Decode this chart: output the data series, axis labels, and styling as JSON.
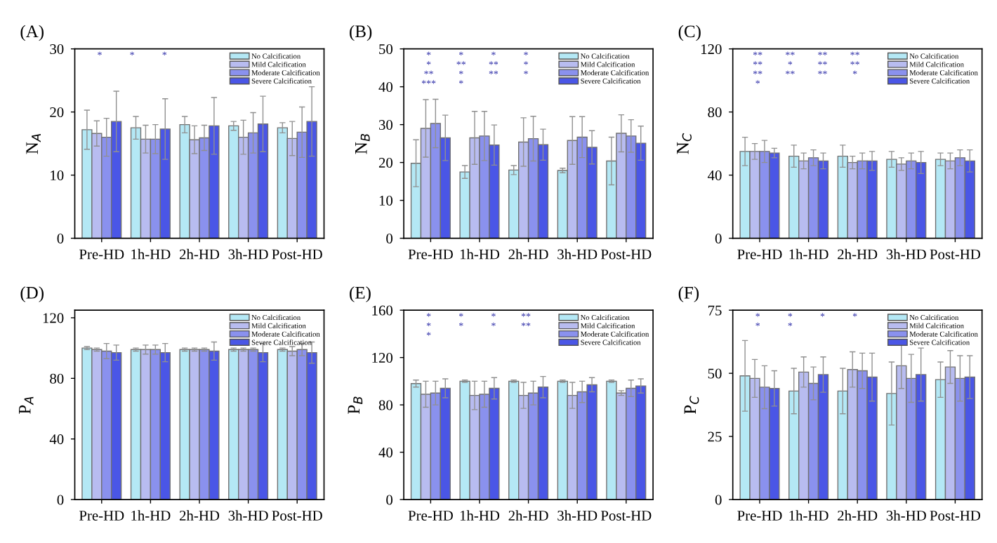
{
  "chart_data": [
    {
      "type": "bar",
      "title": "(A)",
      "ylabel": "N$_{A}$",
      "categories": [
        "Pre-HD",
        "1h-HD",
        "2h-HD",
        "3h-HD",
        "Post-HD"
      ],
      "ylim": [
        0,
        30
      ],
      "yticks": [
        0,
        10,
        20,
        30
      ],
      "legend": "top right",
      "series": [
        {
          "name": "No Calcification",
          "color": "#b4e8f5",
          "values": [
            17.2,
            17.5,
            18,
            17.8,
            17.5
          ],
          "errors": [
            3.1,
            1.8,
            1.3,
            0.7,
            0.8
          ]
        },
        {
          "name": "Mild Calcification",
          "color": "#b8bcf0",
          "values": [
            16.6,
            15.7,
            15.6,
            16,
            15.8
          ],
          "errors": [
            2,
            2.2,
            2.2,
            2.7,
            2.7
          ]
        },
        {
          "name": "Moderate Calcification",
          "color": "#8a91ee",
          "values": [
            16,
            15.7,
            15.9,
            16.7,
            16.8
          ],
          "errors": [
            3,
            2.3,
            2,
            3.2,
            4
          ]
        },
        {
          "name": "Severe Calcification",
          "color": "#4a56e6",
          "values": [
            18.5,
            17.3,
            17.8,
            18.1,
            18.5
          ],
          "errors": [
            4.8,
            4.8,
            4.5,
            4.4,
            5.5
          ]
        }
      ],
      "annotations": [
        "*",
        "*",
        "*"
      ]
    },
    {
      "type": "bar",
      "title": "(B)",
      "ylabel": "N$_{B}$",
      "categories": [
        "Pre-HD",
        "1h-HD",
        "2h-HD",
        "3h-HD",
        "Post-HD"
      ],
      "ylim": [
        0,
        50
      ],
      "yticks": [
        0,
        10,
        20,
        30,
        40,
        50
      ],
      "legend": "top right",
      "series": [
        {
          "name": "No Calcification",
          "color": "#b4e8f5",
          "values": [
            19.8,
            17.5,
            18,
            17.9,
            20.4
          ],
          "errors": [
            6.2,
            1.7,
            1.2,
            0.6,
            6.3
          ]
        },
        {
          "name": "Mild Calcification",
          "color": "#b8bcf0",
          "values": [
            29,
            26.5,
            25.4,
            25.8,
            27.7
          ],
          "errors": [
            7.6,
            7,
            6.4,
            6.3,
            4.9
          ]
        },
        {
          "name": "Moderate Calcification",
          "color": "#8a91ee",
          "values": [
            30.3,
            27,
            26.3,
            26.7,
            27
          ],
          "errors": [
            6.4,
            6.5,
            5.9,
            5.4,
            4.3
          ]
        },
        {
          "name": "Severe Calcification",
          "color": "#4a56e6",
          "values": [
            26.5,
            24.6,
            24.7,
            24,
            25.1
          ],
          "errors": [
            6,
            5.3,
            4.1,
            4.4,
            4.5
          ]
        }
      ],
      "annotations": [
        "*",
        "*",
        "*",
        "*",
        "*",
        "**",
        "**",
        "*",
        "**",
        "*",
        "**",
        "*",
        "***",
        "*"
      ]
    },
    {
      "type": "bar",
      "title": "(C)",
      "ylabel": "N$_{C}$",
      "categories": [
        "Pre-HD",
        "1h-HD",
        "2h-HD",
        "3h-HD",
        "Post-HD"
      ],
      "ylim": [
        0,
        120
      ],
      "yticks": [
        0,
        40,
        80,
        120
      ],
      "legend": "top right",
      "series": [
        {
          "name": "No Calcification",
          "color": "#b4e8f5",
          "values": [
            55,
            52,
            52,
            50,
            50
          ],
          "errors": [
            9,
            7,
            7,
            5,
            4
          ]
        },
        {
          "name": "Mild Calcification",
          "color": "#b8bcf0",
          "values": [
            55,
            49,
            48,
            47,
            49
          ],
          "errors": [
            5,
            5,
            4,
            4,
            5
          ]
        },
        {
          "name": "Moderate Calcification",
          "color": "#8a91ee",
          "values": [
            55,
            51,
            49,
            49,
            51
          ],
          "errors": [
            7,
            5,
            5,
            5,
            5
          ]
        },
        {
          "name": "Severe Calcification",
          "color": "#4a56e6",
          "values": [
            54,
            49,
            49,
            48,
            49
          ],
          "errors": [
            3,
            5,
            6,
            7,
            7
          ]
        }
      ],
      "annotations": [
        "**",
        "**",
        "**",
        "**",
        "**",
        "*",
        "**",
        "**",
        "**",
        "**",
        "**",
        "*",
        "*"
      ]
    },
    {
      "type": "bar",
      "title": "(D)",
      "ylabel": "P$_{A}$",
      "categories": [
        "Pre-HD",
        "1h-HD",
        "2h-HD",
        "3h-HD",
        "Post-HD"
      ],
      "ylim": [
        0,
        125
      ],
      "yticks": [
        0,
        40,
        80,
        120
      ],
      "legend": "top right",
      "series": [
        {
          "name": "No Calcification",
          "color": "#b4e8f5",
          "values": [
            100,
            99,
            99,
            99,
            99
          ],
          "errors": [
            1,
            1,
            1,
            1,
            1
          ]
        },
        {
          "name": "Mild Calcification",
          "color": "#b8bcf0",
          "values": [
            99,
            99,
            99,
            99,
            98
          ],
          "errors": [
            1,
            3,
            1,
            1,
            3
          ]
        },
        {
          "name": "Moderate Calcification",
          "color": "#8a91ee",
          "values": [
            98,
            99,
            99,
            99,
            99
          ],
          "errors": [
            5,
            3,
            1,
            1,
            4
          ]
        },
        {
          "name": "Severe Calcification",
          "color": "#4a56e6",
          "values": [
            97,
            97,
            98,
            97,
            97
          ],
          "errors": [
            5,
            6,
            6,
            6,
            7
          ]
        }
      ]
    },
    {
      "type": "bar",
      "title": "(E)",
      "ylabel": "P$_{B}$",
      "categories": [
        "Pre-HD",
        "1h-HD",
        "2h-HD",
        "3h-HD",
        "Post-HD"
      ],
      "ylim": [
        0,
        160
      ],
      "yticks": [
        0,
        40,
        80,
        120,
        160
      ],
      "legend": "top right",
      "series": [
        {
          "name": "No Calcification",
          "color": "#b4e8f5",
          "values": [
            98,
            100,
            100,
            100,
            100
          ],
          "errors": [
            3,
            1,
            1,
            1,
            1
          ]
        },
        {
          "name": "Mild Calcification",
          "color": "#b8bcf0",
          "values": [
            89,
            88,
            88,
            88,
            90
          ],
          "errors": [
            11,
            12,
            11,
            11,
            2
          ]
        },
        {
          "name": "Moderate Calcification",
          "color": "#8a91ee",
          "values": [
            90,
            89,
            90,
            91,
            94
          ],
          "errors": [
            10,
            11,
            10,
            9,
            7
          ]
        },
        {
          "name": "Severe Calcification",
          "color": "#4a56e6",
          "values": [
            94,
            94,
            95,
            97,
            96
          ],
          "errors": [
            8,
            9,
            9,
            6,
            6
          ]
        }
      ],
      "annotations": [
        "*",
        "*",
        "*",
        "**",
        "*",
        "*",
        "*",
        "**",
        "*"
      ]
    },
    {
      "type": "bar",
      "title": "(F)",
      "ylabel": "P$_{C}$",
      "categories": [
        "Pre-HD",
        "1h-HD",
        "2h-HD",
        "3h-HD",
        "Post-HD"
      ],
      "ylim": [
        0,
        75
      ],
      "yticks": [
        0,
        25,
        50,
        75
      ],
      "legend": "top right",
      "series": [
        {
          "name": "No Calcification",
          "color": "#b4e8f5",
          "values": [
            49,
            43,
            43,
            42,
            47.5
          ],
          "errors": [
            14,
            9,
            9,
            12.5,
            7
          ]
        },
        {
          "name": "Mild Calcification",
          "color": "#b8bcf0",
          "values": [
            48,
            50.5,
            51.5,
            53,
            52.5
          ],
          "errors": [
            7.5,
            6,
            7,
            9,
            6.5
          ]
        },
        {
          "name": "Moderate Calcification",
          "color": "#8a91ee",
          "values": [
            44.5,
            46,
            51,
            48,
            48
          ],
          "errors": [
            8.5,
            6.5,
            7,
            9.5,
            9
          ]
        },
        {
          "name": "Severe Calcification",
          "color": "#4a56e6",
          "values": [
            44,
            49.5,
            48.5,
            49.5,
            48.5
          ],
          "errors": [
            7,
            7,
            9.5,
            10.5,
            8.5
          ]
        }
      ],
      "annotations": [
        "*",
        "*",
        "*",
        "*",
        "*",
        "*"
      ]
    }
  ]
}
